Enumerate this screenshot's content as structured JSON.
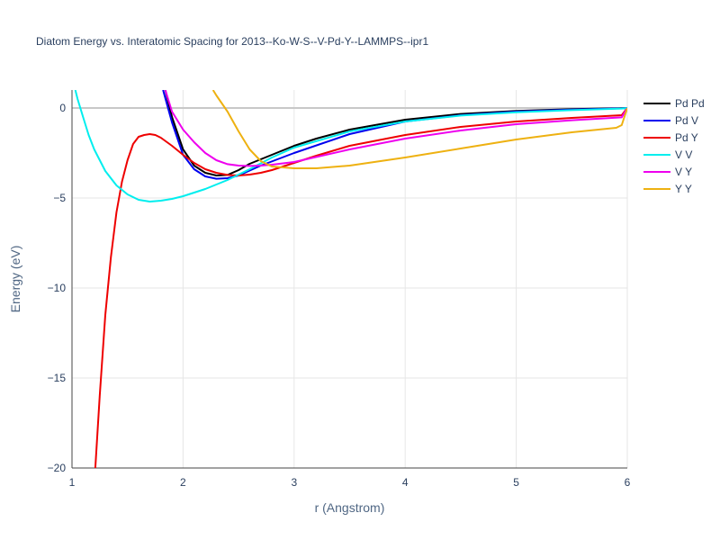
{
  "chart_data": {
    "type": "line",
    "title": "Diatom Energy vs. Interatomic Spacing for 2013--Ko-W-S--V-Pd-Y--LAMMPS--ipr1",
    "xlabel": "r (Angstrom)",
    "ylabel": "Energy (eV)",
    "xlim": [
      1,
      6
    ],
    "ylim": [
      -20,
      1
    ],
    "xticks": [
      1,
      2,
      3,
      4,
      5,
      6
    ],
    "xtick_labels": [
      "1",
      "2",
      "3",
      "4",
      "5",
      "6"
    ],
    "yticks": [
      0,
      -5,
      -10,
      -15,
      -20
    ],
    "ytick_labels": [
      "0",
      "−5",
      "−10",
      "−15",
      "−20"
    ],
    "grid": true,
    "legend_position": "top-right",
    "series": [
      {
        "name": "Pd Pd",
        "color": "#000000",
        "x": [
          1.84,
          1.9,
          2.0,
          2.1,
          2.2,
          2.3,
          2.4,
          2.5,
          2.6,
          2.8,
          3.0,
          3.2,
          3.5,
          4.0,
          4.5,
          5.0,
          5.5,
          5.95,
          6.0
        ],
        "y": [
          1.0,
          -0.5,
          -2.3,
          -3.2,
          -3.6,
          -3.75,
          -3.72,
          -3.45,
          -3.1,
          -2.6,
          -2.1,
          -1.7,
          -1.2,
          -0.65,
          -0.33,
          -0.16,
          -0.06,
          -0.01,
          0.0
        ]
      },
      {
        "name": "Pd V",
        "color": "#0000ee",
        "x": [
          1.82,
          1.9,
          2.0,
          2.1,
          2.2,
          2.3,
          2.4,
          2.5,
          2.7,
          3.0,
          3.5,
          4.0,
          4.5,
          5.0,
          5.5,
          5.95,
          6.0
        ],
        "y": [
          1.0,
          -0.8,
          -2.6,
          -3.4,
          -3.8,
          -3.93,
          -3.9,
          -3.75,
          -3.2,
          -2.5,
          -1.45,
          -0.75,
          -0.4,
          -0.2,
          -0.09,
          -0.02,
          0.0
        ]
      },
      {
        "name": "Pd Y",
        "color": "#ee0000",
        "x": [
          1.21,
          1.25,
          1.3,
          1.35,
          1.4,
          1.45,
          1.5,
          1.55,
          1.6,
          1.65,
          1.7,
          1.75,
          1.8,
          1.9,
          2.0,
          2.1,
          2.2,
          2.3,
          2.4,
          2.5,
          2.6,
          2.7,
          2.8,
          2.9,
          3.0,
          3.2,
          3.5,
          4.0,
          4.5,
          5.0,
          5.5,
          5.95,
          6.0
        ],
        "y": [
          -20.0,
          -16.0,
          -11.5,
          -8.3,
          -5.8,
          -4.1,
          -2.9,
          -2.0,
          -1.6,
          -1.5,
          -1.45,
          -1.5,
          -1.65,
          -2.1,
          -2.6,
          -3.05,
          -3.4,
          -3.6,
          -3.72,
          -3.75,
          -3.7,
          -3.6,
          -3.45,
          -3.25,
          -3.05,
          -2.65,
          -2.1,
          -1.5,
          -1.05,
          -0.75,
          -0.55,
          -0.4,
          0.0
        ]
      },
      {
        "name": "V V",
        "color": "#00eeee",
        "x": [
          1.03,
          1.05,
          1.1,
          1.15,
          1.2,
          1.3,
          1.4,
          1.5,
          1.6,
          1.7,
          1.8,
          1.9,
          2.0,
          2.2,
          2.4,
          2.6,
          2.8,
          3.0,
          3.5,
          4.0,
          4.5,
          5.0,
          5.5,
          5.95,
          6.0
        ],
        "y": [
          1.0,
          0.5,
          -0.5,
          -1.5,
          -2.3,
          -3.5,
          -4.3,
          -4.8,
          -5.1,
          -5.2,
          -5.15,
          -5.05,
          -4.9,
          -4.5,
          -4.0,
          -3.4,
          -2.75,
          -2.2,
          -1.3,
          -0.75,
          -0.42,
          -0.24,
          -0.12,
          -0.03,
          0.0
        ]
      },
      {
        "name": "V Y",
        "color": "#ee00ee",
        "x": [
          1.84,
          1.9,
          2.0,
          2.1,
          2.2,
          2.3,
          2.4,
          2.5,
          2.6,
          2.7,
          2.8,
          3.0,
          3.5,
          4.0,
          4.5,
          5.0,
          5.5,
          5.95,
          6.0
        ],
        "y": [
          1.0,
          -0.2,
          -1.2,
          -1.9,
          -2.5,
          -2.9,
          -3.12,
          -3.2,
          -3.22,
          -3.2,
          -3.15,
          -3.0,
          -2.3,
          -1.7,
          -1.25,
          -0.9,
          -0.68,
          -0.52,
          0.0
        ]
      },
      {
        "name": "Y Y",
        "color": "#eeb111",
        "x": [
          2.27,
          2.3,
          2.4,
          2.5,
          2.6,
          2.7,
          2.8,
          3.0,
          3.2,
          3.5,
          4.0,
          4.5,
          5.0,
          5.5,
          5.9,
          5.95,
          6.0
        ],
        "y": [
          1.0,
          0.7,
          -0.2,
          -1.3,
          -2.3,
          -2.95,
          -3.25,
          -3.35,
          -3.35,
          -3.2,
          -2.75,
          -2.25,
          -1.75,
          -1.35,
          -1.1,
          -0.95,
          0.0
        ]
      }
    ]
  }
}
